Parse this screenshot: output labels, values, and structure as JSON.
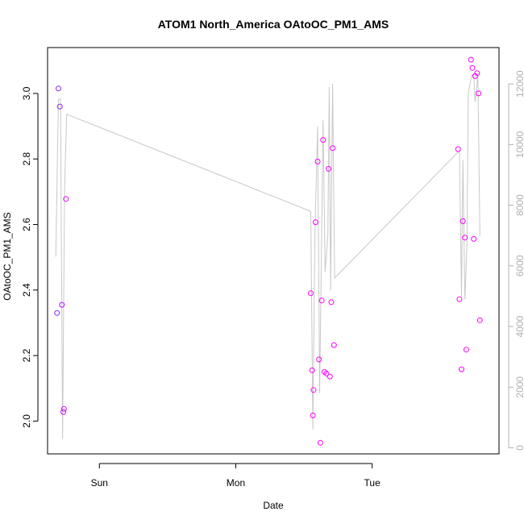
{
  "chart_data": {
    "type": "scatter",
    "title": "ATOM1 North_America OAtoOC_PM1_AMS",
    "xlabel": "Date",
    "ylabel": "OAtoOC_PM1_AMS",
    "x_ticks": [
      {
        "value": 0.0,
        "label": "Sun"
      },
      {
        "value": 1.0,
        "label": "Mon"
      },
      {
        "value": 2.0,
        "label": "Tue"
      }
    ],
    "y_ticks": [
      "2.0",
      "2.2",
      "2.4",
      "2.6",
      "2.8",
      "3.0"
    ],
    "y_right_ticks": [
      "0",
      "2000",
      "4000",
      "6000",
      "8000",
      "10000",
      "12000"
    ],
    "xlim": [
      -0.38,
      2.93
    ],
    "ylim": [
      1.9,
      3.14
    ],
    "y_right_lim": [
      -200,
      13200
    ],
    "grid": false,
    "legend": "none",
    "colors": {
      "line": "#c8c8c8",
      "points_start": "#7a2cff",
      "points_end": "#ff00ff",
      "right_axis": "#b0b0b0"
    },
    "scatter_points": [
      {
        "x": -0.31,
        "y": 2.33
      },
      {
        "x": -0.3,
        "y": 3.015
      },
      {
        "x": -0.29,
        "y": 2.96
      },
      {
        "x": -0.275,
        "y": 2.355
      },
      {
        "x": -0.265,
        "y": 2.028
      },
      {
        "x": -0.26,
        "y": 2.037
      },
      {
        "x": -0.245,
        "y": 2.678
      },
      {
        "x": 1.55,
        "y": 2.39
      },
      {
        "x": 1.56,
        "y": 2.155
      },
      {
        "x": 1.565,
        "y": 2.017
      },
      {
        "x": 1.57,
        "y": 2.095
      },
      {
        "x": 1.585,
        "y": 2.607
      },
      {
        "x": 1.6,
        "y": 2.792
      },
      {
        "x": 1.61,
        "y": 2.188
      },
      {
        "x": 1.62,
        "y": 1.934
      },
      {
        "x": 1.63,
        "y": 2.368
      },
      {
        "x": 1.64,
        "y": 2.858
      },
      {
        "x": 1.65,
        "y": 2.15
      },
      {
        "x": 1.665,
        "y": 2.145
      },
      {
        "x": 1.68,
        "y": 2.77
      },
      {
        "x": 1.69,
        "y": 2.136
      },
      {
        "x": 1.7,
        "y": 2.363
      },
      {
        "x": 1.71,
        "y": 2.833
      },
      {
        "x": 1.72,
        "y": 2.232
      },
      {
        "x": 2.63,
        "y": 2.83
      },
      {
        "x": 2.64,
        "y": 2.372
      },
      {
        "x": 2.655,
        "y": 2.158
      },
      {
        "x": 2.665,
        "y": 2.61
      },
      {
        "x": 2.68,
        "y": 2.56
      },
      {
        "x": 2.69,
        "y": 2.218
      },
      {
        "x": 2.725,
        "y": 3.103
      },
      {
        "x": 2.735,
        "y": 3.078
      },
      {
        "x": 2.745,
        "y": 2.556
      },
      {
        "x": 2.755,
        "y": 3.053
      },
      {
        "x": 2.77,
        "y": 3.062
      },
      {
        "x": 2.78,
        "y": 3.0
      },
      {
        "x": 2.79,
        "y": 2.308
      }
    ],
    "line_series": [
      {
        "x": -0.32,
        "y": 6300
      },
      {
        "x": -0.3,
        "y": 11500
      },
      {
        "x": -0.285,
        "y": 11500
      },
      {
        "x": -0.27,
        "y": 300
      },
      {
        "x": -0.255,
        "y": 8500
      },
      {
        "x": -0.24,
        "y": 11000
      },
      {
        "x": 1.55,
        "y": 7800
      },
      {
        "x": 1.565,
        "y": 600
      },
      {
        "x": 1.58,
        "y": 7000
      },
      {
        "x": 1.6,
        "y": 10600
      },
      {
        "x": 1.615,
        "y": 1800
      },
      {
        "x": 1.64,
        "y": 10800
      },
      {
        "x": 1.655,
        "y": 5800
      },
      {
        "x": 1.675,
        "y": 7000
      },
      {
        "x": 1.685,
        "y": 11900
      },
      {
        "x": 1.695,
        "y": 5200
      },
      {
        "x": 1.71,
        "y": 12000
      },
      {
        "x": 1.725,
        "y": 5600
      },
      {
        "x": 2.64,
        "y": 9800
      },
      {
        "x": 2.655,
        "y": 5000
      },
      {
        "x": 2.665,
        "y": 9500
      },
      {
        "x": 2.68,
        "y": 4900
      },
      {
        "x": 2.695,
        "y": 6700
      },
      {
        "x": 2.705,
        "y": 11700
      },
      {
        "x": 2.73,
        "y": 12300
      },
      {
        "x": 2.745,
        "y": 12300
      },
      {
        "x": 2.755,
        "y": 11400
      },
      {
        "x": 2.775,
        "y": 12300
      },
      {
        "x": 2.79,
        "y": 7000
      }
    ]
  }
}
